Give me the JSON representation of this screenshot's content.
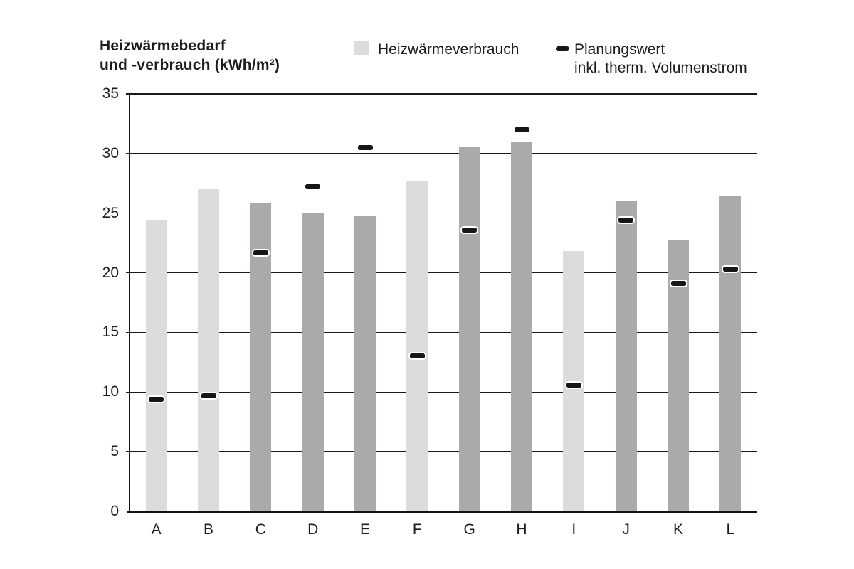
{
  "header": {
    "title_line1": "Heizwärmebedarf",
    "title_line2": "und -verbrauch (kWh/m²)"
  },
  "legend": {
    "bar_series_label": "Heizwärmeverbrauch",
    "marker_series_label_line1": "Planungswert",
    "marker_series_label_line2": "inkl. therm. Volumenstrom"
  },
  "colors": {
    "background": "#ffffff",
    "bar_light": "#dcddda",
    "bar_dark": "#a9aba8",
    "marker_black": "#161614",
    "marker_outline": "#ffffff",
    "grid_line": "#1a1a1a",
    "axis_line": "#111110",
    "text": "#1c1c1a"
  },
  "chart_data": {
    "type": "bar",
    "title": "Heizwärmebedarf und -verbrauch (kWh/m²)",
    "categories": [
      "A",
      "B",
      "C",
      "D",
      "E",
      "F",
      "G",
      "H",
      "I",
      "J",
      "K",
      "L"
    ],
    "series": [
      {
        "name": "Heizwärmeverbrauch",
        "type": "bar",
        "values": [
          24.4,
          27.0,
          25.8,
          25.0,
          24.8,
          27.7,
          30.6,
          31.0,
          21.8,
          26.0,
          22.7,
          26.4
        ],
        "shades": [
          "light",
          "light",
          "dark",
          "dark",
          "dark",
          "light",
          "dark",
          "dark",
          "light",
          "dark",
          "dark",
          "dark"
        ]
      },
      {
        "name": "Planungswert inkl. therm. Volumenstrom",
        "type": "marker",
        "values": [
          9.4,
          9.7,
          21.7,
          27.2,
          30.5,
          13.0,
          23.6,
          32.0,
          10.6,
          24.4,
          19.1,
          20.3
        ]
      }
    ],
    "ylim": [
      0,
      35
    ],
    "yticks": [
      0,
      5,
      10,
      15,
      20,
      25,
      30,
      35
    ],
    "grid": true,
    "legend_position": "top"
  }
}
